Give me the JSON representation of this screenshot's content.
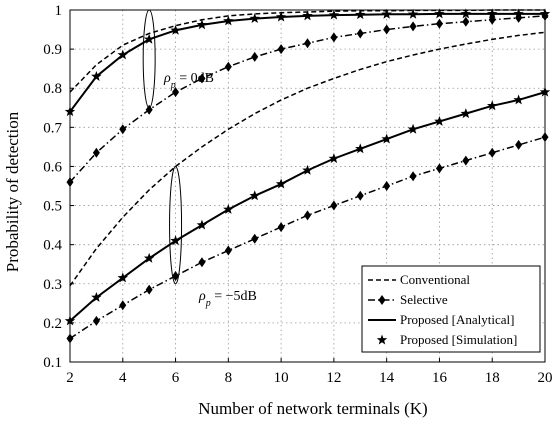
{
  "chart_data": {
    "type": "line",
    "xlabel": "Number of network terminals (K)",
    "ylabel": "Probability of detection",
    "xlim": [
      2,
      20
    ],
    "ylim": [
      0.1,
      1.0
    ],
    "x_ticks": [
      2,
      4,
      6,
      8,
      10,
      12,
      14,
      16,
      18,
      20
    ],
    "y_ticks": [
      0.1,
      0.2,
      0.3,
      0.4,
      0.5,
      0.6,
      0.7,
      0.8,
      0.9,
      1
    ],
    "grid": "dotted",
    "legend_position": "bottom-right",
    "x": [
      2,
      3,
      4,
      5,
      6,
      7,
      8,
      9,
      10,
      11,
      12,
      13,
      14,
      15,
      16,
      17,
      18,
      19,
      20
    ],
    "series": [
      {
        "name": "Conventional",
        "group": "0dB",
        "style": "dashed",
        "marker": "none",
        "values": [
          0.79,
          0.86,
          0.91,
          0.94,
          0.96,
          0.975,
          0.985,
          0.99,
          0.993,
          0.995,
          0.997,
          0.998,
          0.998,
          0.999,
          0.999,
          0.999,
          1.0,
          1.0,
          1.0
        ]
      },
      {
        "name": "Selective",
        "group": "0dB",
        "style": "dashdot",
        "marker": "diamond",
        "values": [
          0.56,
          0.635,
          0.695,
          0.745,
          0.79,
          0.825,
          0.855,
          0.88,
          0.9,
          0.915,
          0.93,
          0.94,
          0.95,
          0.958,
          0.965,
          0.97,
          0.975,
          0.98,
          0.985
        ]
      },
      {
        "name": "Proposed [Analytical]",
        "group": "0dB",
        "style": "solid",
        "marker": "none",
        "values": [
          0.74,
          0.83,
          0.885,
          0.925,
          0.948,
          0.962,
          0.972,
          0.978,
          0.982,
          0.985,
          0.987,
          0.988,
          0.989,
          0.989,
          0.99,
          0.99,
          0.99,
          0.99,
          0.99
        ]
      },
      {
        "name": "Proposed [Simulation]",
        "group": "0dB",
        "style": "none",
        "marker": "star",
        "values": [
          0.74,
          0.83,
          0.885,
          0.925,
          0.948,
          0.962,
          0.972,
          0.978,
          0.982,
          0.985,
          0.987,
          0.988,
          0.989,
          0.989,
          0.99,
          0.99,
          0.99,
          0.99,
          0.99
        ]
      },
      {
        "name": "Conventional",
        "group": "-5dB",
        "style": "dashed",
        "marker": "none",
        "values": [
          0.295,
          0.39,
          0.47,
          0.54,
          0.6,
          0.65,
          0.695,
          0.735,
          0.77,
          0.8,
          0.825,
          0.848,
          0.868,
          0.885,
          0.9,
          0.913,
          0.925,
          0.935,
          0.943
        ]
      },
      {
        "name": "Selective",
        "group": "-5dB",
        "style": "dashdot",
        "marker": "diamond",
        "values": [
          0.16,
          0.205,
          0.245,
          0.285,
          0.32,
          0.355,
          0.385,
          0.415,
          0.445,
          0.475,
          0.5,
          0.525,
          0.55,
          0.575,
          0.595,
          0.615,
          0.635,
          0.655,
          0.675
        ]
      },
      {
        "name": "Proposed [Analytical]",
        "group": "-5dB",
        "style": "solid",
        "marker": "none",
        "values": [
          0.205,
          0.265,
          0.315,
          0.365,
          0.41,
          0.45,
          0.49,
          0.525,
          0.555,
          0.59,
          0.62,
          0.645,
          0.67,
          0.695,
          0.715,
          0.735,
          0.755,
          0.77,
          0.79
        ]
      },
      {
        "name": "Proposed [Simulation]",
        "group": "-5dB",
        "style": "none",
        "marker": "star",
        "values": [
          0.205,
          0.265,
          0.315,
          0.365,
          0.41,
          0.45,
          0.49,
          0.525,
          0.555,
          0.59,
          0.62,
          0.645,
          0.67,
          0.695,
          0.715,
          0.735,
          0.755,
          0.77,
          0.79
        ]
      }
    ],
    "legend": [
      "Conventional",
      "Selective",
      "Proposed [Analytical]",
      "Proposed [Simulation]"
    ],
    "annotations": [
      {
        "text": "ρ_p = 0dB",
        "at_x": 5,
        "at_y": 0.85
      },
      {
        "text": "ρ_p = −5dB",
        "at_x": 6,
        "at_y": 0.42
      }
    ]
  }
}
